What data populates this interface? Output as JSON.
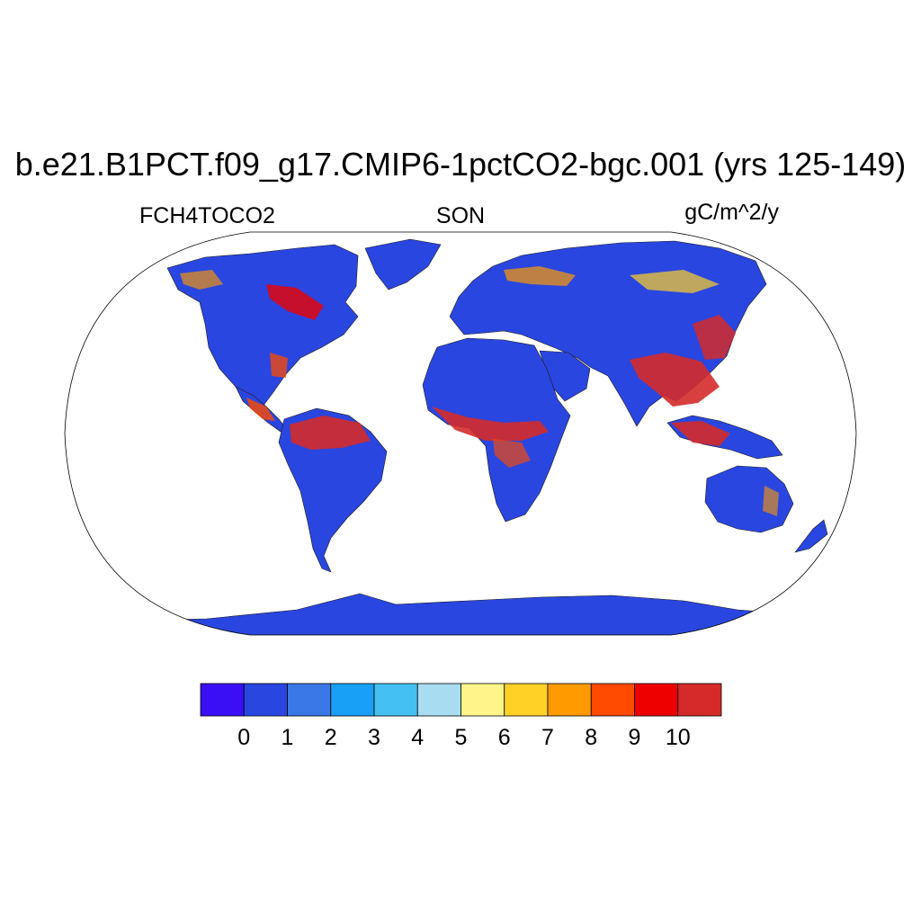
{
  "title": "b.e21.B1PCT.f09_g17.CMIP6-1pctCO2-bgc.001 (yrs 125-149)",
  "variable": "FCH4TOCO2",
  "season": "SON",
  "units": "gC/m^2/y",
  "colorbar": {
    "colors": [
      "#3b0ff5",
      "#2a46e0",
      "#3a78e8",
      "#17a0f5",
      "#45c0f2",
      "#a8dcf0",
      "#fff48a",
      "#ffd026",
      "#ff9a00",
      "#ff4a00",
      "#ee0000",
      "#d42a2a"
    ],
    "levels": [
      "0",
      "1",
      "2",
      "3",
      "4",
      "5",
      "6",
      "7",
      "8",
      "9",
      "10"
    ]
  },
  "map": {
    "projection": "Robinson",
    "land_fill": "#2a46e0",
    "ocean_fill": "#ffffff"
  }
}
